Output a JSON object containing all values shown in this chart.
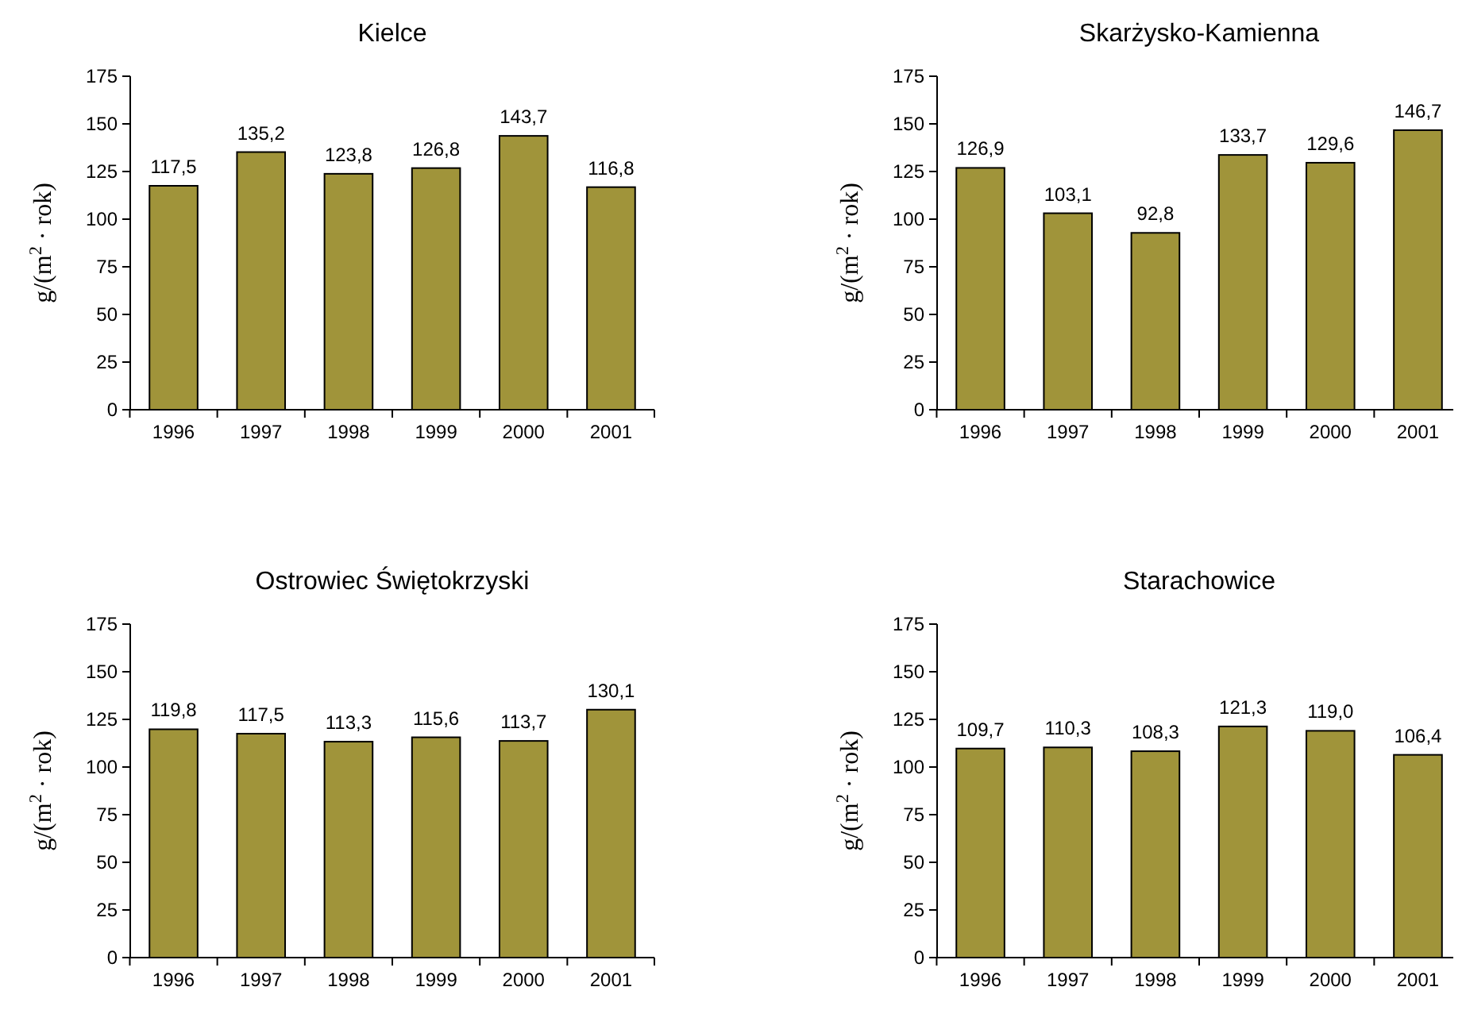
{
  "chart_data": [
    {
      "type": "bar",
      "title": "Kielce",
      "ylabel": "g/(m$^{2}$ · rok)",
      "categories": [
        "1996",
        "1997",
        "1998",
        "1999",
        "2000",
        "2001"
      ],
      "values": [
        117.5,
        135.2,
        123.8,
        126.8,
        143.7,
        116.8
      ],
      "value_labels": [
        "117,5",
        "135,2",
        "123,8",
        "126,8",
        "143,7",
        "116,8"
      ],
      "color": "#a0943a",
      "ylim": [
        0,
        175
      ],
      "yticks": [
        0,
        25,
        50,
        75,
        100,
        125,
        150,
        175
      ]
    },
    {
      "type": "bar",
      "title": "Skarżysko-Kamienna",
      "ylabel": "g/(m$^{2}$ · rok)",
      "categories": [
        "1996",
        "1997",
        "1998",
        "1999",
        "2000",
        "2001"
      ],
      "values": [
        126.9,
        103.1,
        92.8,
        133.7,
        129.6,
        146.7
      ],
      "value_labels": [
        "126,9",
        "103,1",
        "92,8",
        "133,7",
        "129,6",
        "146,7"
      ],
      "color": "#a0943a",
      "ylim": [
        0,
        175
      ],
      "yticks": [
        0,
        25,
        50,
        75,
        100,
        125,
        150,
        175
      ]
    },
    {
      "type": "bar",
      "title": "Ostrowiec Świętokrzyski",
      "ylabel": "g/(m$^{2}$ · rok)",
      "categories": [
        "1996",
        "1997",
        "1998",
        "1999",
        "2000",
        "2001"
      ],
      "values": [
        119.8,
        117.5,
        113.3,
        115.6,
        113.7,
        130.1
      ],
      "value_labels": [
        "119,8",
        "117,5",
        "113,3",
        "115,6",
        "113,7",
        "130,1"
      ],
      "color": "#a0943a",
      "ylim": [
        0,
        175
      ],
      "yticks": [
        0,
        25,
        50,
        75,
        100,
        125,
        150,
        175
      ]
    },
    {
      "type": "bar",
      "title": "Starachowice",
      "ylabel": "g/(m$^{2}$ · rok)",
      "categories": [
        "1996",
        "1997",
        "1998",
        "1999",
        "2000",
        "2001"
      ],
      "values": [
        109.7,
        110.3,
        108.3,
        121.3,
        119.0,
        106.4
      ],
      "value_labels": [
        "109,7",
        "110,3",
        "108,3",
        "121,3",
        "119,0",
        "106,4"
      ],
      "color": "#a0943a",
      "ylim": [
        0,
        175
      ],
      "yticks": [
        0,
        25,
        50,
        75,
        100,
        125,
        150,
        175
      ]
    }
  ]
}
